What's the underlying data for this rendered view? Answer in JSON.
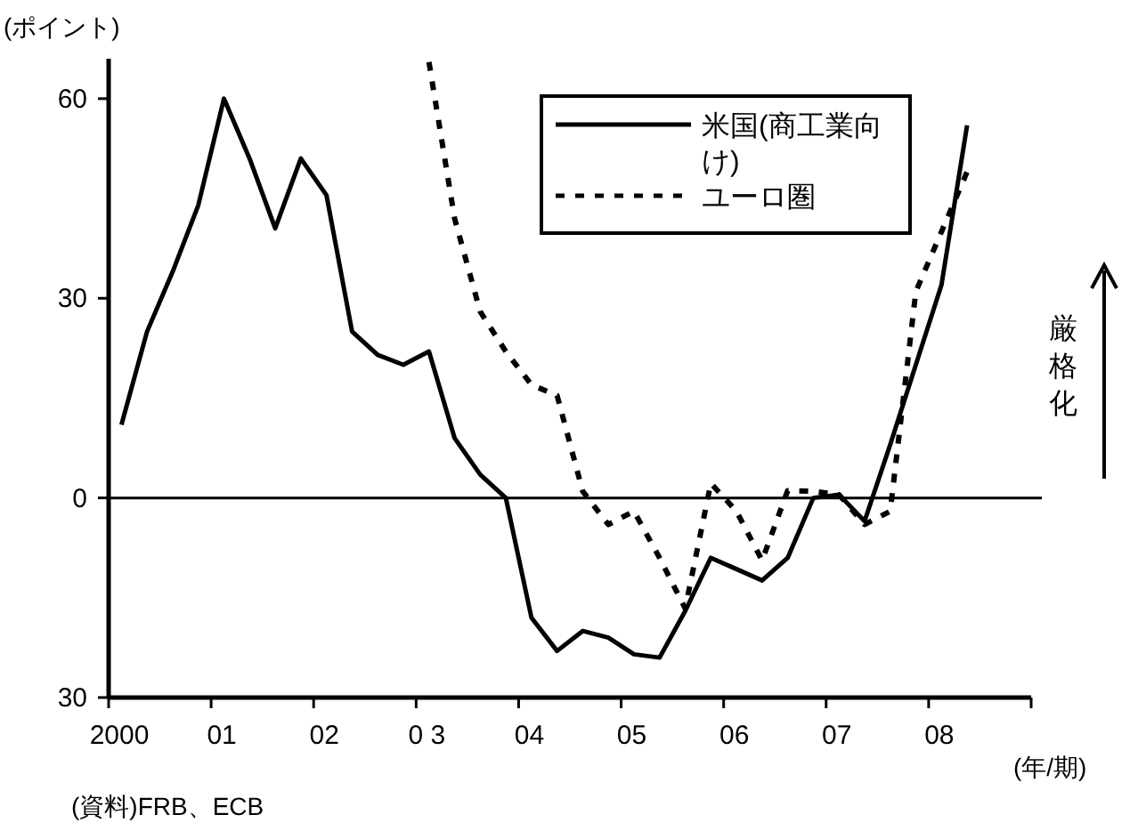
{
  "chart_data": {
    "type": "line",
    "ylabel": "(ポイント)",
    "xlabel": "(年/期)",
    "x": [
      2000.125,
      2000.375,
      2000.625,
      2000.875,
      2001.125,
      2001.375,
      2001.625,
      2001.875,
      2002.125,
      2002.375,
      2002.625,
      2002.875,
      2003.125,
      2003.375,
      2003.625,
      2003.875,
      2004.125,
      2004.375,
      2004.625,
      2004.875,
      2005.125,
      2005.375,
      2005.625,
      2005.875,
      2006.125,
      2006.375,
      2006.625,
      2006.875,
      2007.125,
      2007.375,
      2007.625,
      2007.875,
      2008.125,
      2008.375
    ],
    "series": [
      {
        "name": "米国(商工業向け)",
        "color": "#000000",
        "line_style": "solid",
        "values": [
          11,
          25,
          34,
          44,
          60,
          51,
          40.5,
          51,
          45.5,
          25,
          21.5,
          20,
          22,
          9,
          3.5,
          0,
          -18,
          -23,
          -20,
          -21,
          -23.5,
          -24,
          -17,
          -9,
          -10.7,
          -12.4,
          -9,
          0,
          0.5,
          -3.5,
          8,
          20,
          32,
          56
        ]
      },
      {
        "name": "ユーロ圏",
        "color": "#000000",
        "line_style": "dashed",
        "values": [
          null,
          null,
          null,
          null,
          null,
          null,
          null,
          null,
          null,
          null,
          null,
          null,
          65.5,
          42,
          28,
          22,
          17,
          15.4,
          1,
          -4,
          -2,
          -9,
          -16.6,
          2.2,
          -2,
          -9.4,
          1.1,
          1,
          0.5,
          -4,
          -2,
          31,
          40,
          49
        ]
      }
    ],
    "xlim": [
      2000,
      2009
    ],
    "xticks": [
      {
        "value": 2000,
        "label": "2000"
      },
      {
        "value": 2001,
        "label": "01"
      },
      {
        "value": 2002,
        "label": "02"
      },
      {
        "value": 2003,
        "label": "0 3"
      },
      {
        "value": 2004,
        "label": "04"
      },
      {
        "value": 2005,
        "label": "05"
      },
      {
        "value": 2006,
        "label": "06"
      },
      {
        "value": 2007,
        "label": "07"
      },
      {
        "value": 2008,
        "label": "08"
      },
      {
        "value": 2009,
        "label": null
      }
    ],
    "ylim": [
      -30,
      66
    ],
    "yticks": [
      60,
      30,
      0,
      {
        "value": -30,
        "label": "30"
      }
    ],
    "ref_lines": [
      {
        "axis": "y",
        "value": 0
      }
    ],
    "legend": "top right",
    "marker": "none",
    "grid": false,
    "annotations": [
      "厳格化",
      "(資料)FRB、ECB"
    ]
  }
}
